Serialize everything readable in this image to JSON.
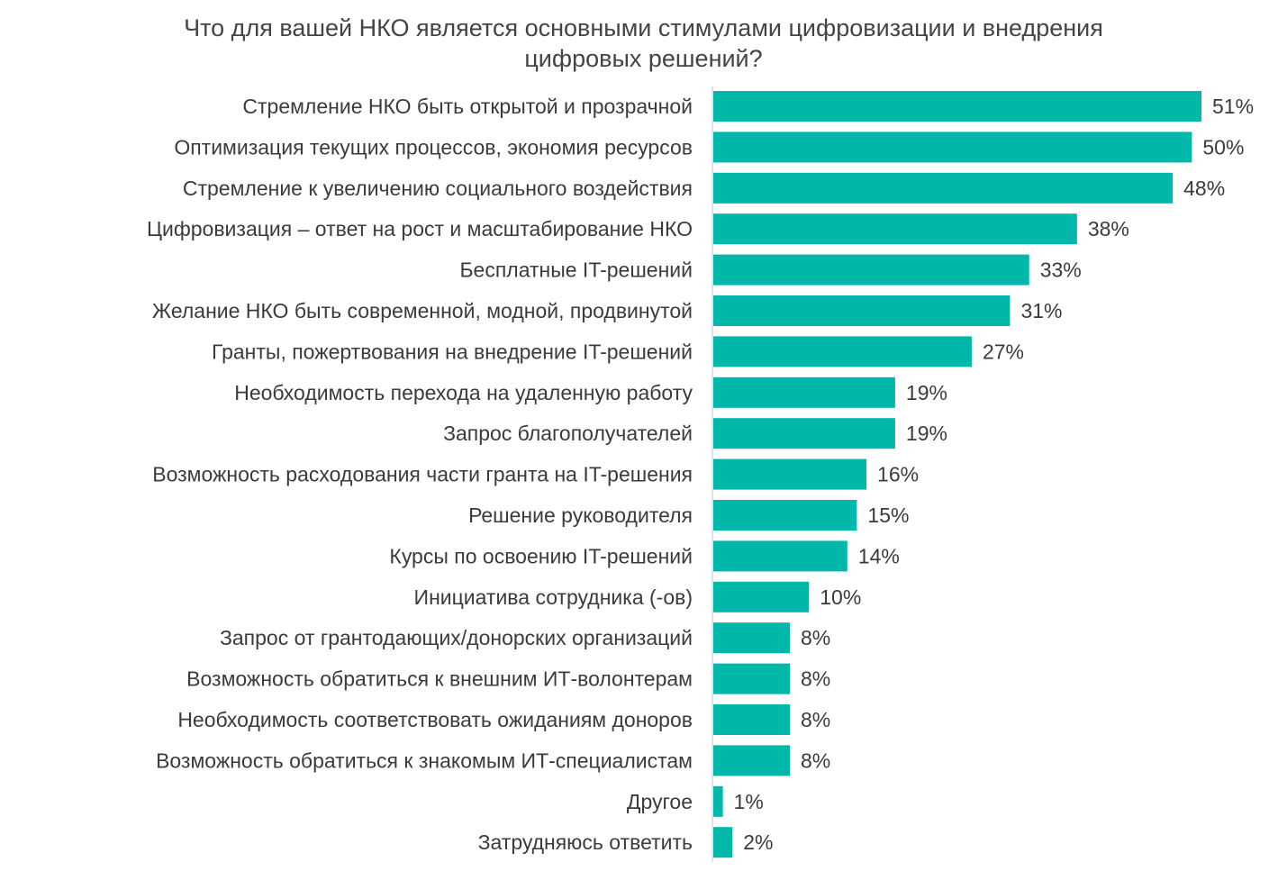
{
  "chart_data": {
    "type": "bar",
    "orientation": "horizontal",
    "title": "Что для вашей НКО является основными стимулами цифровизации и внедрения цифровых решений?",
    "title_lines": [
      "Что для вашей НКО является основными стимулами цифровизации и внедрения",
      "цифровых решений?"
    ],
    "categories": [
      "Стремление НКО быть открытой и прозрачной",
      "Оптимизация текущих процессов, экономия ресурсов",
      "Стремление к увеличению социального воздействия",
      "Цифровизация – ответ на рост и масштабирование НКО",
      "Бесплатные IT-решений",
      "Желание НКО быть современной, модной, продвинутой",
      "Гранты, пожертвования на внедрение IT-решений",
      "Необходимость перехода на удаленную работу",
      "Запрос благополучателей",
      "Возможность расходования части гранта на IT-решения",
      "Решение руководителя",
      "Курсы по освоению IT-решений",
      "Инициатива сотрудника (-ов)",
      "Запрос от грантодающих/донорских организаций",
      "Возможность обратиться к внешним ИТ-волонтерам",
      "Необходимость соответствовать ожиданиям доноров",
      "Возможность обратиться к знакомым ИТ-специалистам",
      "Другое",
      "Затрудняюсь ответить"
    ],
    "values": [
      51,
      50,
      48,
      38,
      33,
      31,
      27,
      19,
      19,
      16,
      15,
      14,
      10,
      8,
      8,
      8,
      8,
      1,
      2
    ],
    "value_labels": [
      "51%",
      "50%",
      "48%",
      "38%",
      "33%",
      "31%",
      "27%",
      "19%",
      "19%",
      "16%",
      "15%",
      "14%",
      "10%",
      "8%",
      "8%",
      "8%",
      "8%",
      "1%",
      "2%"
    ],
    "unit": "%",
    "xlim": [
      0,
      51
    ],
    "bar_color": "#00b8a9",
    "axis_color": "#d9d9d9",
    "grid": false,
    "legend": "none"
  }
}
